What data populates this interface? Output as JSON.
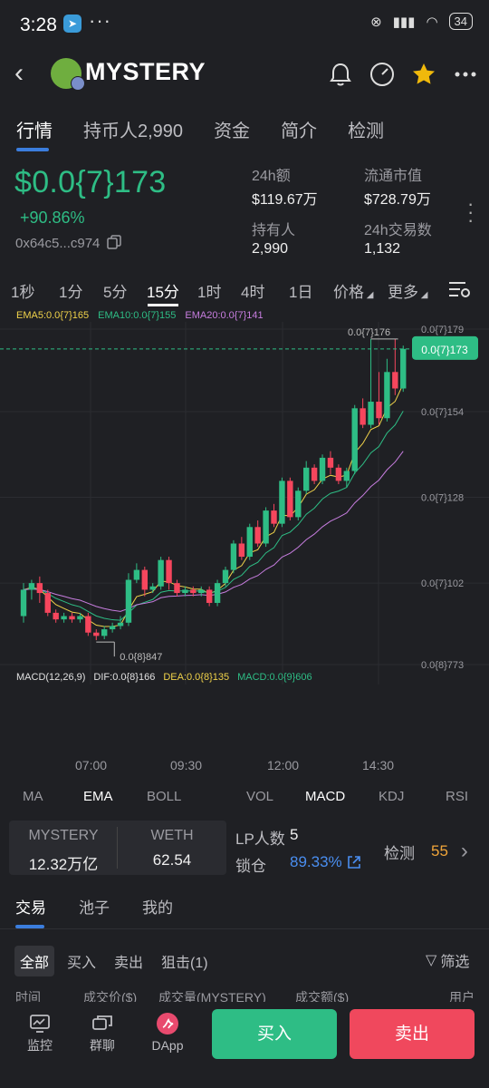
{
  "status_bar": {
    "time": "3:28",
    "battery": "34",
    "colors": {
      "telegram": "#3a9bd9"
    },
    "icons": [
      "telegram-icon",
      "more-dots-icon",
      "link-icon",
      "signal-icon",
      "wifi-icon",
      "battery-icon"
    ]
  },
  "header": {
    "token_name": "MYSTERY",
    "icons": [
      "back-icon",
      "bell-icon",
      "gauge-icon",
      "star-icon",
      "more-icon"
    ],
    "star_color": "#f0b90b"
  },
  "main_tabs": [
    "行情",
    "持币人2,990",
    "资金",
    "简介",
    "检测"
  ],
  "price": {
    "value": "$0.0{7}173",
    "change": "+90.86%",
    "address": "0x64c5...c974"
  },
  "stats": [
    {
      "label": "24h额",
      "value": "$119.67万"
    },
    {
      "label": "流通市值",
      "value": "$728.79万"
    },
    {
      "label": "持有人",
      "value": "2,990"
    },
    {
      "label": "24h交易数",
      "value": "1,132"
    }
  ],
  "timeframes": [
    "1秒",
    "1分",
    "5分",
    "15分",
    "1时",
    "4时",
    "1日",
    "价格",
    "更多"
  ],
  "active_timeframe": "15分",
  "ema_legend": {
    "ema5": "EMA5:0.0{7}165",
    "ema10": "EMA10:0.0{7}155",
    "ema20": "EMA20:0.0{7}141"
  },
  "colors": {
    "up": "#2ebd85",
    "down": "#f6465d",
    "ema5": "#f0d24a",
    "ema10": "#2ebd85",
    "ema20": "#c77ddf",
    "accent": "#3b7ddd"
  },
  "chart_data": {
    "type": "candlestick",
    "y_unit": "×1e-7",
    "y_ticks": [
      "0.0{7}179",
      "0.0{7}154",
      "0.0{7}128",
      "0.0{7}102",
      "0.0{8}773"
    ],
    "y_tick_values": [
      1.79,
      1.54,
      1.28,
      1.02,
      0.773
    ],
    "x_ticks": [
      "07:00",
      "09:30",
      "12:00",
      "14:30"
    ],
    "current_price_label": "0.0{7}173",
    "current_price": 1.73,
    "high_label": "0.0{7}176",
    "high_value": 1.76,
    "low_label": "0.0{8}847",
    "low_value": 0.847,
    "candles": [
      {
        "o": 0.92,
        "c": 1.0,
        "h": 1.02,
        "l": 0.9
      },
      {
        "o": 1.0,
        "c": 1.02,
        "h": 1.03,
        "l": 0.97
      },
      {
        "o": 1.02,
        "c": 0.99,
        "h": 1.04,
        "l": 0.96
      },
      {
        "o": 0.99,
        "c": 0.93,
        "h": 1.0,
        "l": 0.92
      },
      {
        "o": 0.93,
        "c": 0.91,
        "h": 0.94,
        "l": 0.9
      },
      {
        "o": 0.91,
        "c": 0.92,
        "h": 0.93,
        "l": 0.9
      },
      {
        "o": 0.92,
        "c": 0.91,
        "h": 0.93,
        "l": 0.9
      },
      {
        "o": 0.91,
        "c": 0.92,
        "h": 0.93,
        "l": 0.9
      },
      {
        "o": 0.92,
        "c": 0.87,
        "h": 0.93,
        "l": 0.86
      },
      {
        "o": 0.87,
        "c": 0.86,
        "h": 0.88,
        "l": 0.847
      },
      {
        "o": 0.86,
        "c": 0.88,
        "h": 0.89,
        "l": 0.85
      },
      {
        "o": 0.88,
        "c": 0.89,
        "h": 0.9,
        "l": 0.87
      },
      {
        "o": 0.89,
        "c": 0.9,
        "h": 0.92,
        "l": 0.88
      },
      {
        "o": 0.9,
        "c": 1.03,
        "h": 1.05,
        "l": 0.89
      },
      {
        "o": 1.03,
        "c": 1.06,
        "h": 1.08,
        "l": 1.02
      },
      {
        "o": 1.06,
        "c": 1.0,
        "h": 1.07,
        "l": 0.98
      },
      {
        "o": 1.0,
        "c": 1.01,
        "h": 1.02,
        "l": 0.99
      },
      {
        "o": 1.01,
        "c": 1.09,
        "h": 1.1,
        "l": 1.0
      },
      {
        "o": 1.09,
        "c": 1.02,
        "h": 1.1,
        "l": 1.0
      },
      {
        "o": 1.02,
        "c": 0.99,
        "h": 1.03,
        "l": 0.98
      },
      {
        "o": 0.99,
        "c": 1.0,
        "h": 1.01,
        "l": 0.98
      },
      {
        "o": 1.0,
        "c": 0.99,
        "h": 1.01,
        "l": 0.98
      },
      {
        "o": 0.99,
        "c": 1.0,
        "h": 1.01,
        "l": 0.98
      },
      {
        "o": 1.0,
        "c": 0.96,
        "h": 1.01,
        "l": 0.95
      },
      {
        "o": 0.96,
        "c": 1.02,
        "h": 1.03,
        "l": 0.95
      },
      {
        "o": 1.02,
        "c": 1.06,
        "h": 1.07,
        "l": 1.01
      },
      {
        "o": 1.06,
        "c": 1.14,
        "h": 1.15,
        "l": 1.05
      },
      {
        "o": 1.14,
        "c": 1.1,
        "h": 1.16,
        "l": 1.09
      },
      {
        "o": 1.1,
        "c": 1.19,
        "h": 1.2,
        "l": 1.09
      },
      {
        "o": 1.19,
        "c": 1.14,
        "h": 1.21,
        "l": 1.13
      },
      {
        "o": 1.14,
        "c": 1.24,
        "h": 1.25,
        "l": 1.13
      },
      {
        "o": 1.24,
        "c": 1.2,
        "h": 1.26,
        "l": 1.19
      },
      {
        "o": 1.2,
        "c": 1.33,
        "h": 1.34,
        "l": 1.19
      },
      {
        "o": 1.33,
        "c": 1.22,
        "h": 1.34,
        "l": 1.21
      },
      {
        "o": 1.22,
        "c": 1.3,
        "h": 1.31,
        "l": 1.21
      },
      {
        "o": 1.3,
        "c": 1.37,
        "h": 1.39,
        "l": 1.29
      },
      {
        "o": 1.37,
        "c": 1.33,
        "h": 1.38,
        "l": 1.32
      },
      {
        "o": 1.33,
        "c": 1.4,
        "h": 1.41,
        "l": 1.32
      },
      {
        "o": 1.4,
        "c": 1.37,
        "h": 1.42,
        "l": 1.35
      },
      {
        "o": 1.37,
        "c": 1.33,
        "h": 1.38,
        "l": 1.32
      },
      {
        "o": 1.33,
        "c": 1.36,
        "h": 1.37,
        "l": 1.31
      },
      {
        "o": 1.36,
        "c": 1.55,
        "h": 1.56,
        "l": 1.35
      },
      {
        "o": 1.55,
        "c": 1.5,
        "h": 1.58,
        "l": 1.49
      },
      {
        "o": 1.5,
        "c": 1.57,
        "h": 1.76,
        "l": 1.49
      },
      {
        "o": 1.57,
        "c": 1.52,
        "h": 1.66,
        "l": 1.5
      },
      {
        "o": 1.52,
        "c": 1.66,
        "h": 1.7,
        "l": 1.51
      },
      {
        "o": 1.66,
        "c": 1.61,
        "h": 1.76,
        "l": 1.59
      },
      {
        "o": 1.61,
        "c": 1.73,
        "h": 1.74,
        "l": 1.6
      }
    ]
  },
  "macd": {
    "label": "MACD(12,26,9)",
    "dif": "DIF:0.0{8}166",
    "dea": "DEA:0.0{8}135",
    "macd": "MACD:0.0{9}606"
  },
  "indicator_tabs": [
    "MA",
    "EMA",
    "BOLL",
    "VOL",
    "MACD",
    "KDJ",
    "RSI"
  ],
  "pool": {
    "token_label": "MYSTERY",
    "token_value": "12.32万亿",
    "base_label": "WETH",
    "base_value": "62.54",
    "lp_label": "LP人数",
    "lp_value": "5",
    "lock_label": "锁仓",
    "lock_value": "89.33%",
    "check_label": "检测",
    "check_value": "55"
  },
  "trade_tabs": [
    "交易",
    "池子",
    "我的"
  ],
  "filters": [
    "全部",
    "买入",
    "卖出",
    "狙击(1)"
  ],
  "filter_label": "筛选",
  "columns": [
    "时间",
    "成交价($)",
    "成交量(MYSTERY)",
    "成交额($)",
    "用户"
  ],
  "bottom_nav": [
    {
      "label": "监控",
      "icon": "monitor-icon"
    },
    {
      "label": "群聊",
      "icon": "chat-icon"
    },
    {
      "label": "DApp",
      "icon": "dapp-icon"
    }
  ],
  "buy_label": "买入",
  "sell_label": "卖出"
}
